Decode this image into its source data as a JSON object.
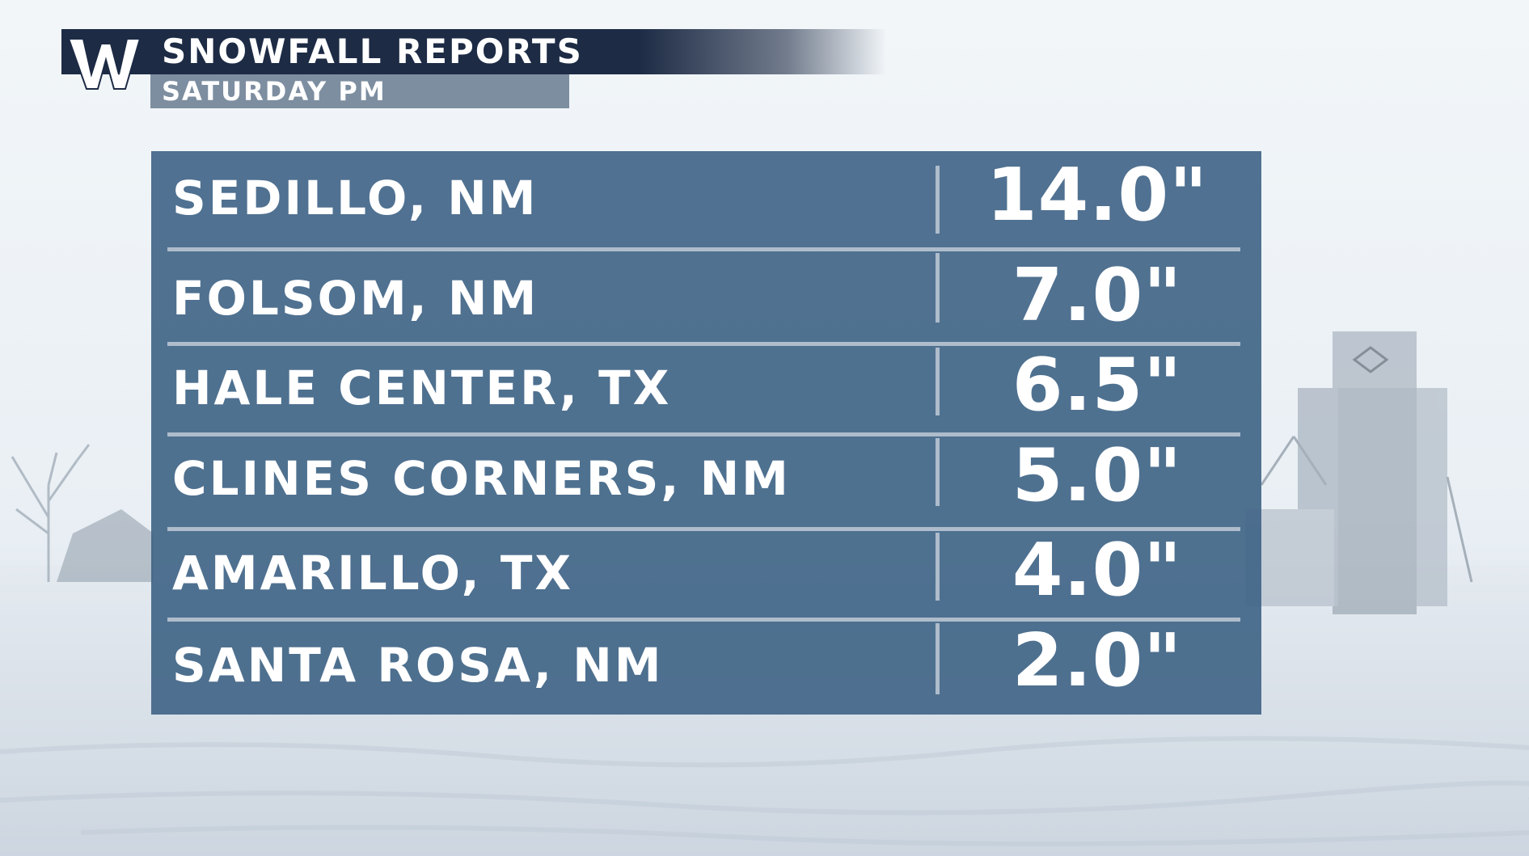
{
  "header": {
    "logo_letter": "W",
    "title": "SNOWFALL REPORTS",
    "subtitle": "SATURDAY PM"
  },
  "table": {
    "rows": [
      {
        "location": "SEDILLO, NM",
        "amount": "14.0\""
      },
      {
        "location": "FOLSOM, NM",
        "amount": "7.0\""
      },
      {
        "location": "HALE CENTER, TX",
        "amount": "6.5\""
      },
      {
        "location": "CLINES CORNERS, NM",
        "amount": "5.0\""
      },
      {
        "location": "AMARILLO, TX",
        "amount": "4.0\""
      },
      {
        "location": "SANTA ROSA, NM",
        "amount": "2.0\""
      }
    ]
  },
  "colors": {
    "header_bar": "#1d2b45",
    "subtitle_bar": "#7d8ea0",
    "table_bg": "#3e6385",
    "divider": "#aebccb",
    "text": "#ffffff"
  },
  "icons": {
    "logo": "weather-network-w-logo"
  }
}
